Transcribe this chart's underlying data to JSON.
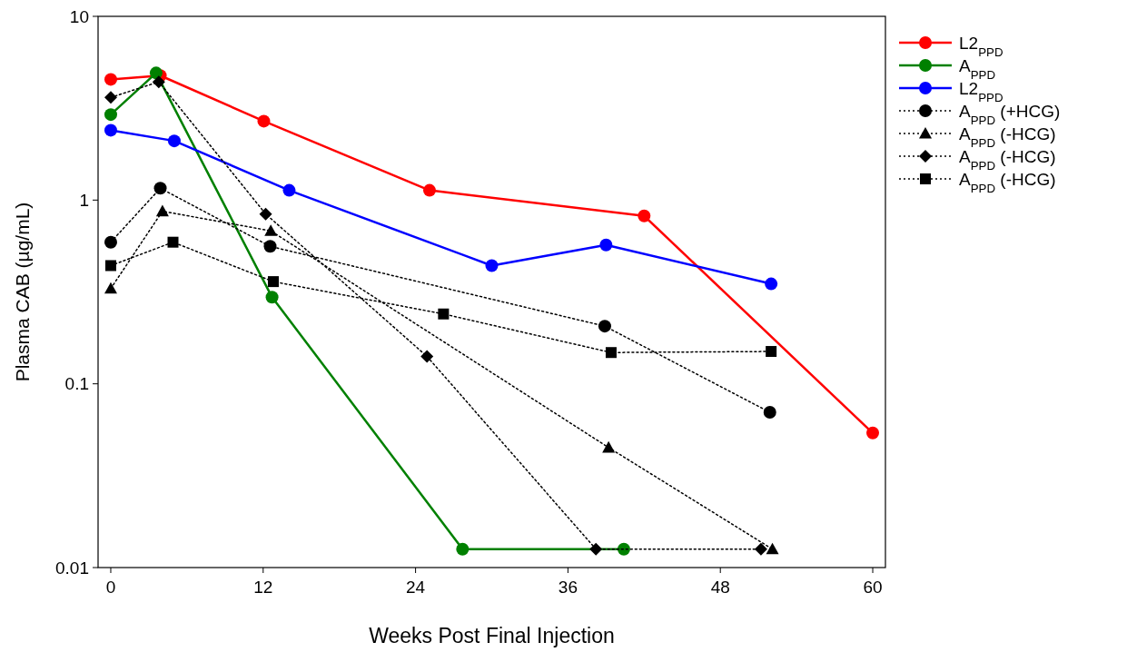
{
  "chart_data": {
    "type": "line",
    "xlabel": "Weeks Post Final Injection",
    "ylabel": "Plasma CAB (µg/mL)",
    "log": "y",
    "xlim": [
      -1,
      61
    ],
    "xticks": [
      0,
      12,
      24,
      36,
      48,
      60
    ],
    "ylim": [
      0.01,
      10
    ],
    "yticks": [
      0.01,
      0.1,
      1,
      10
    ],
    "grid": false,
    "legend": "right",
    "series": [
      {
        "name": "L2$_{PPD}$",
        "color": "#ff0000",
        "marker": "circle",
        "line_style": "solid",
        "x": [
          0,
          3.9,
          12.05,
          25.1,
          42.0,
          60
        ],
        "values": [
          4.54,
          4.76,
          2.69,
          1.13,
          0.82,
          0.054
        ]
      },
      {
        "name": "A$_{PPD}$",
        "color": "#008000",
        "marker": "circle",
        "line_style": "solid",
        "x": [
          0,
          3.57,
          12.7,
          27.7,
          40.4
        ],
        "values": [
          2.92,
          4.92,
          0.296,
          0.0126,
          0.0126
        ]
      },
      {
        "name": "L2$_{PPD}$",
        "color": "#0000ff",
        "marker": "circle",
        "line_style": "solid",
        "x": [
          0,
          5.0,
          14.05,
          30.0,
          39.0,
          52.0
        ],
        "values": [
          2.4,
          2.1,
          1.13,
          0.44,
          0.57,
          0.35
        ]
      },
      {
        "name": "A$_{PPD}$ (+HCG)",
        "color": "#000000",
        "marker": "circle",
        "line_style": "dotted",
        "x": [
          0,
          3.9,
          12.55,
          38.9,
          51.9
        ],
        "values": [
          0.59,
          1.16,
          0.56,
          0.206,
          0.07
        ]
      },
      {
        "name": "A$_{PPD}$ (-HCG)",
        "color": "#000000",
        "marker": "triangle",
        "line_style": "dotted",
        "x": [
          0,
          4.07,
          12.6,
          39.2,
          52.1
        ],
        "values": [
          0.33,
          0.87,
          0.68,
          0.045,
          0.0126
        ]
      },
      {
        "name": "A$_{PPD}$ (-HCG)",
        "color": "#000000",
        "marker": "diamond",
        "line_style": "dotted",
        "x": [
          0,
          3.78,
          12.2,
          24.9,
          38.2,
          51.2
        ],
        "values": [
          3.62,
          4.4,
          0.84,
          0.141,
          0.0126,
          0.0126
        ]
      },
      {
        "name": "A$_{PPD}$ (-HCG)",
        "color": "#000000",
        "marker": "square",
        "line_style": "dotted",
        "x": [
          0,
          4.9,
          12.8,
          26.2,
          39.4,
          52.0
        ],
        "values": [
          0.44,
          0.59,
          0.36,
          0.24,
          0.148,
          0.15
        ]
      }
    ]
  }
}
